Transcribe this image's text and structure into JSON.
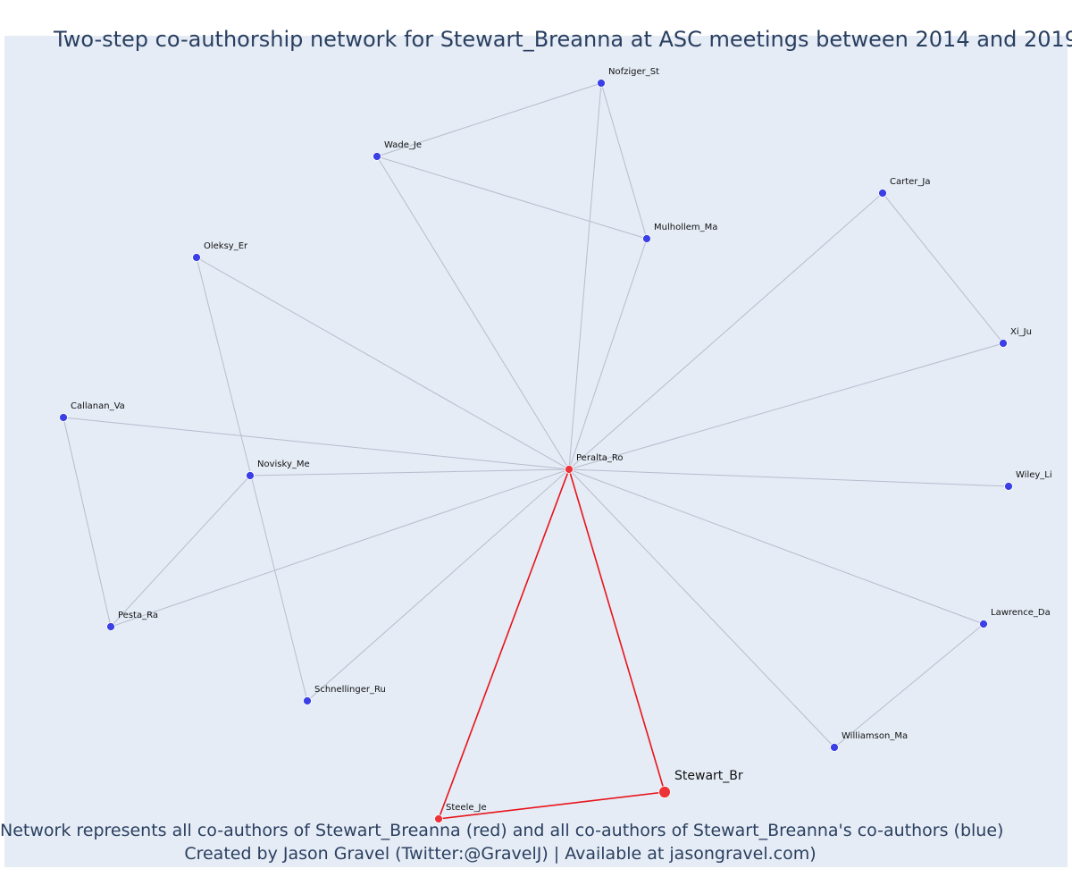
{
  "title": "Two-step co-authorship network for Stewart_Breanna at ASC meetings between 2014 and 2019",
  "caption_line1": "Network represents all co-authors of Stewart_Breanna (red) and all co-authors of Stewart_Breanna's co-authors (blue)",
  "caption_line2": "Created by Jason Gravel (Twitter:@GravelJ) | Available at jasongravel.com)",
  "colors": {
    "background": "#e5ecf6",
    "edge": "#b7bccd",
    "red_edge": "#e8141a",
    "blue_node": "#3b3fe6",
    "red_node": "#ee3338",
    "title_text": "#2a3f5f"
  },
  "network": {
    "nodes": [
      {
        "id": "Nofziger_St",
        "label": "Nofziger_St",
        "group": "blue"
      },
      {
        "id": "Wade_Je",
        "label": "Wade_Je",
        "group": "blue"
      },
      {
        "id": "Carter_Ja",
        "label": "Carter_Ja",
        "group": "blue"
      },
      {
        "id": "Mulhollem_Ma",
        "label": "Mulhollem_Ma",
        "group": "blue"
      },
      {
        "id": "Oleksy_Er",
        "label": "Oleksy_Er",
        "group": "blue"
      },
      {
        "id": "Xi_Ju",
        "label": "Xi_Ju",
        "group": "blue"
      },
      {
        "id": "Callanan_Va",
        "label": "Callanan_Va",
        "group": "blue"
      },
      {
        "id": "Peralta_Ro",
        "label": "Peralta_Ro",
        "group": "red"
      },
      {
        "id": "Novisky_Me",
        "label": "Novisky_Me",
        "group": "blue"
      },
      {
        "id": "Wiley_Li",
        "label": "Wiley_Li",
        "group": "blue"
      },
      {
        "id": "Lawrence_Da",
        "label": "Lawrence_Da",
        "group": "blue"
      },
      {
        "id": "Pesta_Ra",
        "label": "Pesta_Ra",
        "group": "blue"
      },
      {
        "id": "Schnellinger_Ru",
        "label": "Schnellinger_Ru",
        "group": "blue"
      },
      {
        "id": "Williamson_Ma",
        "label": "Williamson_Ma",
        "group": "blue"
      },
      {
        "id": "Stewart_Br",
        "label": "Stewart_Br",
        "group": "focal"
      },
      {
        "id": "Steele_Je",
        "label": "Steele_Je",
        "group": "red"
      }
    ],
    "edges": [
      {
        "from": "Nofziger_St",
        "to": "Wade_Je",
        "type": "gray"
      },
      {
        "from": "Nofziger_St",
        "to": "Mulhollem_Ma",
        "type": "gray"
      },
      {
        "from": "Nofziger_St",
        "to": "Peralta_Ro",
        "type": "gray"
      },
      {
        "from": "Wade_Je",
        "to": "Mulhollem_Ma",
        "type": "gray"
      },
      {
        "from": "Wade_Je",
        "to": "Peralta_Ro",
        "type": "gray"
      },
      {
        "from": "Mulhollem_Ma",
        "to": "Peralta_Ro",
        "type": "gray"
      },
      {
        "from": "Carter_Ja",
        "to": "Xi_Ju",
        "type": "gray"
      },
      {
        "from": "Carter_Ja",
        "to": "Peralta_Ro",
        "type": "gray"
      },
      {
        "from": "Xi_Ju",
        "to": "Peralta_Ro",
        "type": "gray"
      },
      {
        "from": "Oleksy_Er",
        "to": "Peralta_Ro",
        "type": "gray"
      },
      {
        "from": "Oleksy_Er",
        "to": "Schnellinger_Ru",
        "type": "gray"
      },
      {
        "from": "Callanan_Va",
        "to": "Peralta_Ro",
        "type": "gray"
      },
      {
        "from": "Callanan_Va",
        "to": "Pesta_Ra",
        "type": "gray"
      },
      {
        "from": "Novisky_Me",
        "to": "Peralta_Ro",
        "type": "gray"
      },
      {
        "from": "Novisky_Me",
        "to": "Pesta_Ra",
        "type": "gray"
      },
      {
        "from": "Pesta_Ra",
        "to": "Peralta_Ro",
        "type": "gray"
      },
      {
        "from": "Schnellinger_Ru",
        "to": "Peralta_Ro",
        "type": "gray"
      },
      {
        "from": "Wiley_Li",
        "to": "Peralta_Ro",
        "type": "gray"
      },
      {
        "from": "Lawrence_Da",
        "to": "Peralta_Ro",
        "type": "gray"
      },
      {
        "from": "Lawrence_Da",
        "to": "Williamson_Ma",
        "type": "gray"
      },
      {
        "from": "Williamson_Ma",
        "to": "Peralta_Ro",
        "type": "gray"
      },
      {
        "from": "Peralta_Ro",
        "to": "Steele_Je",
        "type": "red"
      },
      {
        "from": "Peralta_Ro",
        "to": "Stewart_Br",
        "type": "red"
      },
      {
        "from": "Steele_Je",
        "to": "Stewart_Br",
        "type": "red"
      }
    ]
  }
}
